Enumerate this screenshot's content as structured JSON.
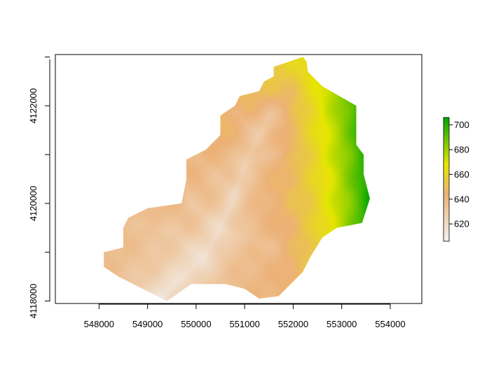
{
  "chart_data": {
    "type": "heatmap",
    "title": "",
    "xlabel": "",
    "ylabel": "",
    "xlim": [
      547100,
      554650
    ],
    "ylim": [
      4117950,
      4123050
    ],
    "x_ticks": [
      548000,
      549000,
      550000,
      551000,
      552000,
      553000,
      554000
    ],
    "x_tick_labels": [
      "548000",
      "549000",
      "550000",
      "551000",
      "552000",
      "553000",
      "554000"
    ],
    "y_ticks": [
      4118000,
      4119000,
      4120000,
      4121000,
      4122000,
      4123000
    ],
    "y_tick_labels": [
      "4118000",
      "",
      "4120000",
      "",
      "4122000",
      ""
    ],
    "legend": {
      "placement": "right",
      "range": [
        606,
        706
      ],
      "ticks": [
        620,
        640,
        660,
        680,
        700
      ],
      "tick_labels": [
        "620",
        "640",
        "660",
        "680",
        "700"
      ]
    },
    "color_scale": [
      "#f2f2f2",
      "#ecb176",
      "#e6e600",
      "#00a600"
    ],
    "value_range": [
      606,
      706
    ],
    "boundary": [
      [
        552200,
        4123000
      ],
      [
        552280,
        4122900
      ],
      [
        552300,
        4122700
      ],
      [
        552600,
        4122400
      ],
      [
        553300,
        4122000
      ],
      [
        553300,
        4121200
      ],
      [
        553450,
        4121000
      ],
      [
        553450,
        4120600
      ],
      [
        553580,
        4120100
      ],
      [
        553420,
        4119600
      ],
      [
        552900,
        4119500
      ],
      [
        552600,
        4119300
      ],
      [
        552350,
        4118900
      ],
      [
        552200,
        4118600
      ],
      [
        551700,
        4118100
      ],
      [
        551300,
        4118050
      ],
      [
        551000,
        4118250
      ],
      [
        550600,
        4118350
      ],
      [
        549900,
        4118350
      ],
      [
        549400,
        4118000
      ],
      [
        549000,
        4118200
      ],
      [
        548400,
        4118500
      ],
      [
        548100,
        4118700
      ],
      [
        548100,
        4119000
      ],
      [
        548500,
        4119100
      ],
      [
        548500,
        4119500
      ],
      [
        548600,
        4119700
      ],
      [
        549000,
        4119900
      ],
      [
        549700,
        4120000
      ],
      [
        549800,
        4120500
      ],
      [
        549800,
        4120900
      ],
      [
        550200,
        4121100
      ],
      [
        550500,
        4121400
      ],
      [
        550500,
        4121800
      ],
      [
        550800,
        4122000
      ],
      [
        550900,
        4122200
      ],
      [
        551300,
        4122300
      ],
      [
        551400,
        4122500
      ],
      [
        551600,
        4122600
      ],
      [
        551600,
        4122800
      ],
      [
        551900,
        4122900
      ]
    ],
    "outlet": [
      549300,
      4118100
    ],
    "valley_points": [
      [
        549300,
        4118100
      ],
      [
        549700,
        4118500
      ],
      [
        550150,
        4118900
      ],
      [
        550500,
        4119500
      ],
      [
        550800,
        4120200
      ],
      [
        551000,
        4120800
      ],
      [
        551300,
        4121400
      ],
      [
        551500,
        4121800
      ]
    ],
    "tributaries": [
      [
        [
          550150,
          4118900
        ],
        [
          549500,
          4119400
        ],
        [
          548900,
          4119600
        ]
      ],
      [
        [
          550500,
          4119500
        ],
        [
          549900,
          4120000
        ],
        [
          549800,
          4120400
        ]
      ],
      [
        [
          550500,
          4119500
        ],
        [
          551000,
          4119300
        ],
        [
          551600,
          4119100
        ]
      ],
      [
        [
          550800,
          4120200
        ],
        [
          550200,
          4120800
        ],
        [
          550000,
          4121000
        ]
      ],
      [
        [
          551000,
          4120800
        ],
        [
          551500,
          4121000
        ],
        [
          551900,
          4121100
        ]
      ],
      [
        [
          551300,
          4121400
        ],
        [
          550900,
          4121800
        ],
        [
          550700,
          4122000
        ]
      ],
      [
        [
          551300,
          4121400
        ],
        [
          551700,
          4121700
        ],
        [
          552000,
          4122300
        ]
      ]
    ]
  }
}
